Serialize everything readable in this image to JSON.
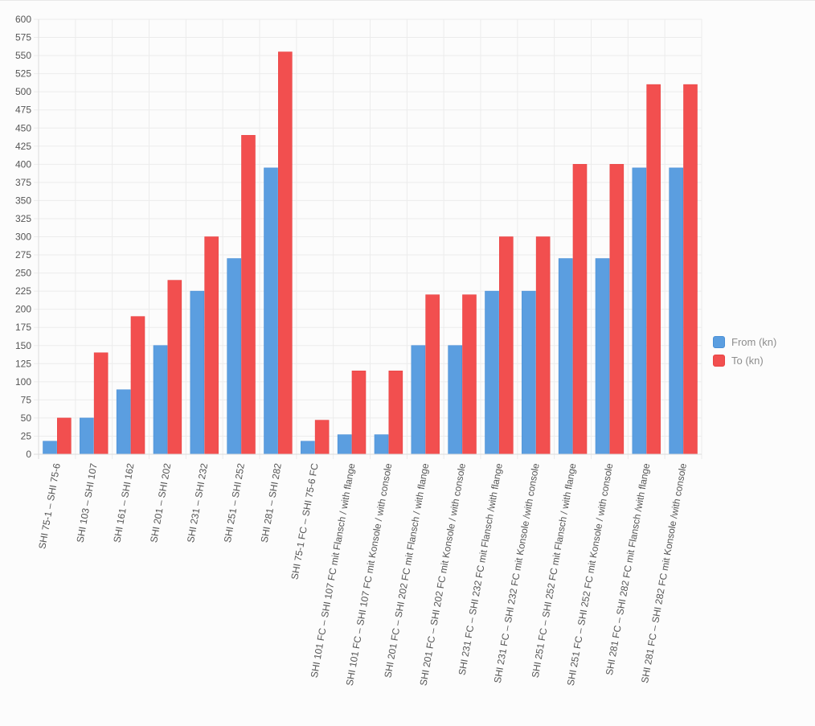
{
  "chart_data": {
    "type": "bar",
    "title": "",
    "xlabel": "",
    "ylabel": "",
    "ylim": [
      0,
      600
    ],
    "y_ticks": [
      0,
      25,
      50,
      75,
      100,
      125,
      150,
      175,
      200,
      225,
      250,
      275,
      300,
      325,
      350,
      375,
      400,
      425,
      450,
      475,
      500,
      525,
      550,
      575,
      600
    ],
    "grid": true,
    "legend_position": "right",
    "categories": [
      "SHI 75-1 – SHI 75-6",
      "SHI 103 – SHI 107",
      "SHI 161 – SHI 162",
      "SHI 201 – SHI 202",
      "SHI 231 – SHI 232",
      "SHI 251 – SHI 252",
      "SHI 281 – SHI 282",
      "SHI 75-1 FC – SHI 75-6 FC",
      "SHI 101 FC – SHI 107 FC mit Flansch / with flange",
      "SHI 101 FC – SHI 107 FC mit Konsole / with console",
      "SHI 201 FC – SHI 202 FC mit Flansch / with flange",
      "SHI 201 FC – SHI 202 FC mit Konsole / with console",
      "SHI 231 FC – SHI 232 FC mit Flansch /with flange",
      "SHI 231 FC – SHI 232 FC mit Konsole /with console",
      "SHI 251 FC – SHI 252 FC mit Flansch / with flange",
      "SHI 251 FC – SHI 252 FC mit Konsole / with console",
      "SHI 281 FC – SHI 282 FC mit Flansch /with flange",
      "SHI 281 FC – SHI 282 FC mit Konsole /with console"
    ],
    "series": [
      {
        "name": "From (kn)",
        "color": "#5b9ee0",
        "values": [
          18,
          50,
          89,
          150,
          225,
          270,
          395,
          18,
          27,
          27,
          150,
          150,
          225,
          225,
          270,
          270,
          395,
          395
        ]
      },
      {
        "name": "To (kn)",
        "color": "#f24f4f",
        "values": [
          50,
          140,
          190,
          240,
          300,
          440,
          555,
          47,
          115,
          115,
          220,
          220,
          300,
          300,
          400,
          400,
          510,
          510
        ]
      }
    ]
  }
}
